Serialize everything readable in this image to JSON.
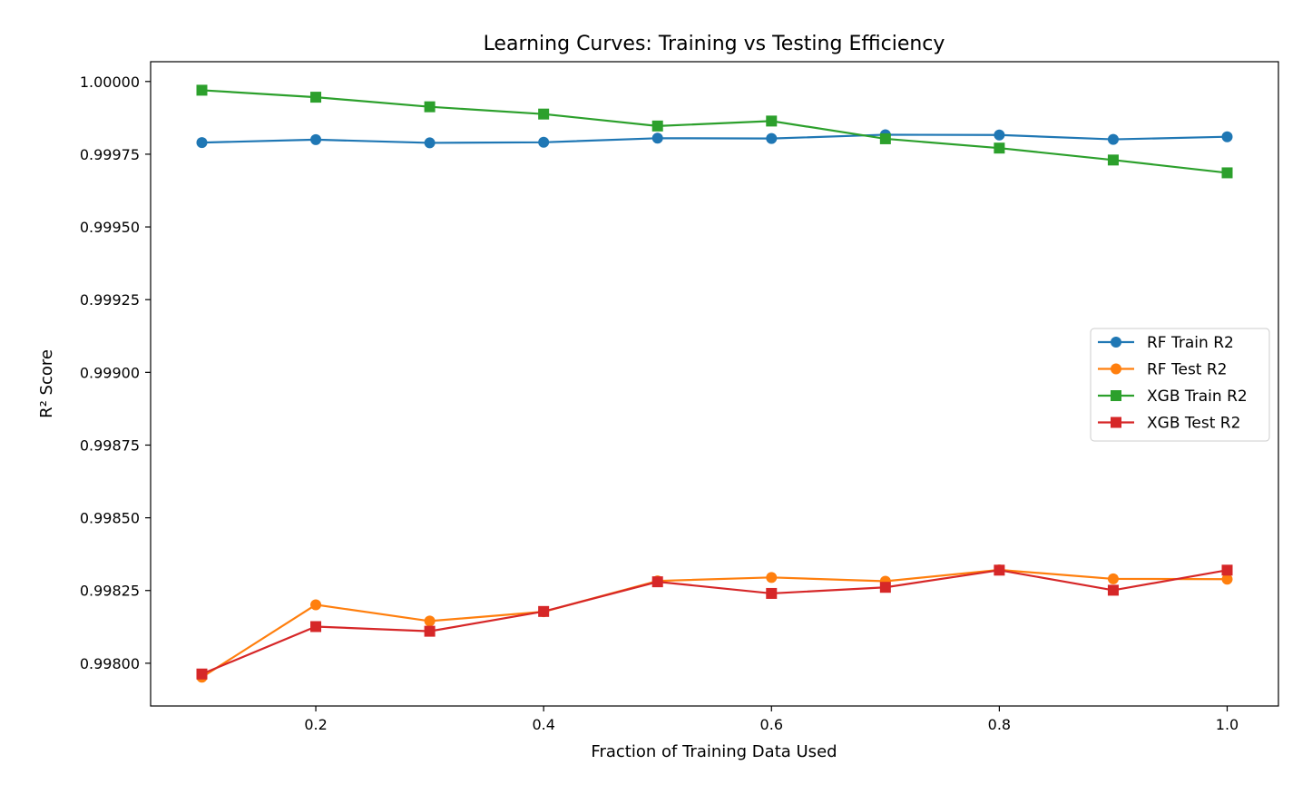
{
  "chart_data": {
    "type": "line",
    "title": "Learning Curves: Training vs Testing Efficiency",
    "xlabel": "Fraction of Training Data Used",
    "ylabel": "R² Score",
    "xlim": [
      0.055,
      1.045
    ],
    "ylim": [
      0.997853,
      1.000068
    ],
    "x": [
      0.1,
      0.2,
      0.3,
      0.4,
      0.5,
      0.6,
      0.7,
      0.8,
      0.9,
      1.0
    ],
    "xticks": [
      "0.2",
      "0.4",
      "0.6",
      "0.8",
      "1.0"
    ],
    "yticks": [
      "0.99800",
      "0.99825",
      "0.99850",
      "0.99875",
      "0.99900",
      "0.99925",
      "0.99950",
      "0.99975",
      "1.00000"
    ],
    "grid": false,
    "legend_position": "center-right",
    "series": [
      {
        "name": "RF Train R2",
        "color": "#1f77b4",
        "marker": "circle",
        "values": [
          0.99979,
          0.9998,
          0.999789,
          0.999791,
          0.999805,
          0.999804,
          0.999817,
          0.999816,
          0.999801,
          0.99981
        ]
      },
      {
        "name": "RF Test R2",
        "color": "#ff7f0e",
        "marker": "circle",
        "values": [
          0.997952,
          0.998201,
          0.998145,
          0.998177,
          0.998283,
          0.998295,
          0.998282,
          0.998321,
          0.99829,
          0.998289
        ]
      },
      {
        "name": "XGB Train R2",
        "color": "#2ca02c",
        "marker": "square",
        "values": [
          0.99997,
          0.999946,
          0.999913,
          0.999888,
          0.999847,
          0.999864,
          0.999803,
          0.999771,
          0.99973,
          0.999686
        ]
      },
      {
        "name": "XGB Test R2",
        "color": "#d62728",
        "marker": "square",
        "values": [
          0.997963,
          0.998126,
          0.99811,
          0.998178,
          0.99828,
          0.99824,
          0.998261,
          0.99832,
          0.998251,
          0.99832
        ]
      }
    ]
  }
}
